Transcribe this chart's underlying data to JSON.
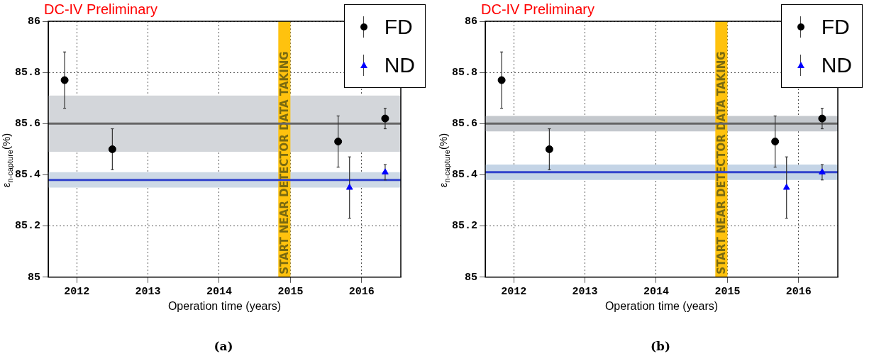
{
  "chart_data": [
    {
      "type": "scatter",
      "title": "DC-IV Preliminary",
      "xlabel": "Operation time (years)",
      "ylabel": "ε$_{n-capture}$(%)",
      "series": [
        {
          "name": "FD",
          "color": "#000000",
          "marker": "circle",
          "x": [
            2011.83,
            2012.5,
            2015.67,
            2016.33
          ],
          "values": [
            85.77,
            85.5,
            85.53,
            85.62
          ],
          "errors": [
            0.11,
            0.08,
            0.1,
            0.04
          ]
        },
        {
          "name": "ND",
          "color": "#0000ff",
          "marker": "triangle",
          "x": [
            2015.83,
            2016.33
          ],
          "values": [
            85.35,
            85.41
          ],
          "errors": [
            0.12,
            0.03
          ]
        }
      ],
      "xlim": [
        2011.6,
        2016.55
      ],
      "xticks": [
        2012,
        2013,
        2014,
        2015,
        2016
      ],
      "ylim": [
        85,
        86
      ],
      "yticks": [
        85,
        85.2,
        85.4,
        85.6,
        85.8,
        86
      ],
      "ref_lines": [
        {
          "axis": "y",
          "value": 85.6,
          "color": "#666666"
        },
        {
          "axis": "y",
          "value": 85.38,
          "color": "#3344cc"
        }
      ],
      "bands": [
        {
          "axis": "y",
          "from": 85.49,
          "to": 85.71,
          "color": "#d3d6da"
        },
        {
          "axis": "y",
          "from": 85.35,
          "to": 85.41,
          "color": "#cdd9e6"
        },
        {
          "axis": "x",
          "from": 2014.83,
          "to": 2015.0,
          "color": "#ffc20e",
          "label": "START NEAR DETECTOR DATA TAKING"
        }
      ],
      "grid": true,
      "legend": "top right",
      "annotations": [
        "(a)"
      ]
    },
    {
      "type": "scatter",
      "title": "DC-IV Preliminary",
      "xlabel": "Operation time (years)",
      "ylabel": "ε$_{n-capture}$(%)",
      "series": [
        {
          "name": "FD",
          "color": "#000000",
          "marker": "circle",
          "x": [
            2011.83,
            2012.5,
            2015.67,
            2016.33
          ],
          "values": [
            85.77,
            85.5,
            85.53,
            85.62
          ],
          "errors": [
            0.11,
            0.08,
            0.1,
            0.04
          ]
        },
        {
          "name": "ND",
          "color": "#0000ff",
          "marker": "triangle",
          "x": [
            2015.83,
            2016.33
          ],
          "values": [
            85.35,
            85.41
          ],
          "errors": [
            0.12,
            0.03
          ]
        }
      ],
      "xlim": [
        2011.6,
        2016.55
      ],
      "xticks": [
        2012,
        2013,
        2014,
        2015,
        2016
      ],
      "ylim": [
        85,
        86
      ],
      "yticks": [
        85,
        85.2,
        85.4,
        85.6,
        85.8,
        86
      ],
      "ref_lines": [
        {
          "axis": "y",
          "value": 85.6,
          "color": "#666666"
        },
        {
          "axis": "y",
          "value": 85.41,
          "color": "#3344cc"
        }
      ],
      "bands": [
        {
          "axis": "y",
          "from": 85.57,
          "to": 85.63,
          "color": "#c4c8cd"
        },
        {
          "axis": "y",
          "from": 85.38,
          "to": 85.44,
          "color": "#c4d4e6"
        },
        {
          "axis": "x",
          "from": 2014.83,
          "to": 2015.0,
          "color": "#ffc20e",
          "label": "START NEAR DETECTOR DATA TAKING"
        }
      ],
      "grid": true,
      "legend": "top right",
      "annotations": [
        "(b)"
      ]
    }
  ]
}
